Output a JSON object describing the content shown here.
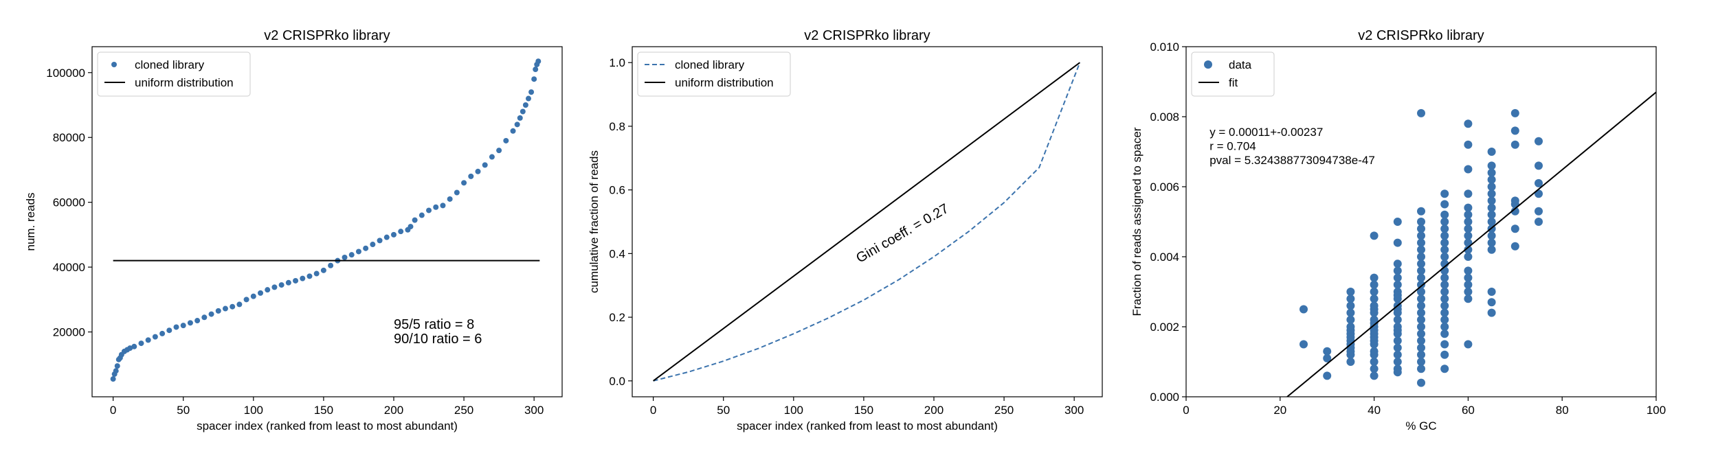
{
  "chart_data": [
    {
      "type": "scatter",
      "title": "v2 CRISPRko library",
      "xlabel": "spacer index (ranked from least to most abundant)",
      "ylabel": "num. reads",
      "xlim": [
        -15,
        320
      ],
      "ylim": [
        0,
        108000
      ],
      "xticks": [
        0,
        50,
        100,
        150,
        200,
        250,
        300
      ],
      "yticks": [
        20000,
        40000,
        60000,
        80000,
        100000
      ],
      "xtick_labels": [
        "0",
        "50",
        "100",
        "150",
        "200",
        "250",
        "300"
      ],
      "ytick_labels": [
        "20000",
        "40000",
        "60000",
        "80000",
        "100000"
      ],
      "grid": false,
      "legend_position": "top-left",
      "series": [
        {
          "name": "cloned library",
          "kind": "points",
          "color": "#3b73ad",
          "x": [
            0,
            1,
            2,
            3,
            4,
            5,
            6,
            8,
            10,
            12,
            15,
            20,
            25,
            30,
            35,
            40,
            45,
            50,
            55,
            60,
            65,
            70,
            75,
            80,
            85,
            90,
            95,
            100,
            105,
            110,
            115,
            120,
            125,
            130,
            135,
            140,
            145,
            150,
            155,
            160,
            165,
            170,
            175,
            180,
            185,
            190,
            195,
            200,
            205,
            210,
            212,
            215,
            220,
            225,
            230,
            235,
            240,
            245,
            250,
            255,
            260,
            265,
            270,
            275,
            280,
            285,
            288,
            290,
            292,
            294,
            296,
            298,
            300,
            301,
            302,
            303
          ],
          "y": [
            5500,
            7000,
            8000,
            9500,
            11500,
            12000,
            13000,
            14000,
            14500,
            15000,
            15500,
            16500,
            17500,
            18500,
            19500,
            20500,
            21500,
            22000,
            22800,
            23500,
            24500,
            25500,
            26500,
            27200,
            27800,
            28500,
            30000,
            31000,
            32000,
            33000,
            33800,
            34500,
            35200,
            35800,
            36500,
            37200,
            38000,
            39000,
            40500,
            42000,
            43000,
            43800,
            44800,
            45800,
            47000,
            48200,
            49200,
            50000,
            51000,
            51500,
            52500,
            54500,
            56000,
            57500,
            58500,
            59000,
            61000,
            63000,
            66000,
            68000,
            69500,
            71500,
            74000,
            76000,
            79000,
            82000,
            84000,
            86000,
            88000,
            90000,
            92000,
            94000,
            98000,
            101000,
            102500,
            103500
          ]
        },
        {
          "name": "uniform distribution",
          "kind": "line",
          "color": "#000000",
          "x": [
            0,
            304
          ],
          "y": [
            42000,
            42000
          ]
        }
      ],
      "annotations": [
        {
          "text": "95/5 ratio = 8",
          "x": 200,
          "y": 21000
        },
        {
          "text": "90/10 ratio = 6",
          "x": 200,
          "y": 16500
        }
      ]
    },
    {
      "type": "line",
      "title": "v2 CRISPRko library",
      "xlabel": "spacer index (ranked from least to most abundant)",
      "ylabel": "cumulative fraction of reads",
      "xlim": [
        -15,
        320
      ],
      "ylim": [
        -0.05,
        1.05
      ],
      "xticks": [
        0,
        50,
        100,
        150,
        200,
        250,
        300
      ],
      "yticks": [
        0.0,
        0.2,
        0.4,
        0.6,
        0.8,
        1.0
      ],
      "xtick_labels": [
        "0",
        "50",
        "100",
        "150",
        "200",
        "250",
        "300"
      ],
      "ytick_labels": [
        "0.0",
        "0.2",
        "0.4",
        "0.6",
        "0.8",
        "1.0"
      ],
      "grid": false,
      "legend_position": "top-left",
      "series": [
        {
          "name": "cloned library",
          "kind": "dashed",
          "color": "#3b73ad",
          "x": [
            0,
            25,
            50,
            75,
            100,
            125,
            150,
            175,
            200,
            225,
            250,
            275,
            304
          ],
          "y": [
            0.0,
            0.028,
            0.062,
            0.102,
            0.148,
            0.198,
            0.254,
            0.318,
            0.39,
            0.47,
            0.56,
            0.67,
            1.0
          ]
        },
        {
          "name": "uniform distribution",
          "kind": "line",
          "color": "#000000",
          "x": [
            0,
            304
          ],
          "y": [
            0.0,
            1.0
          ]
        }
      ],
      "annotations": [
        {
          "text": "Gini coeff. = 0.27",
          "x": 147,
          "y": 0.37,
          "rotation": -30
        }
      ]
    },
    {
      "type": "scatter",
      "title": "v2 CRISPRko library",
      "xlabel": "% GC",
      "ylabel": "Fraction of reads assigned to spacer",
      "xlim": [
        0,
        100
      ],
      "ylim": [
        0,
        0.01
      ],
      "xticks": [
        0,
        20,
        40,
        60,
        80,
        100
      ],
      "yticks": [
        0.0,
        0.002,
        0.004,
        0.006,
        0.008,
        0.01
      ],
      "xtick_labels": [
        "0",
        "20",
        "40",
        "60",
        "80",
        "100"
      ],
      "ytick_labels": [
        "0.000",
        "0.002",
        "0.004",
        "0.006",
        "0.008",
        "0.010"
      ],
      "grid": false,
      "legend_position": "top-left",
      "series": [
        {
          "name": "data",
          "kind": "points",
          "color": "#3b73ad",
          "x": [
            25,
            25,
            30,
            30,
            30,
            35,
            35,
            35,
            35,
            35,
            35,
            35,
            35,
            35,
            35,
            35,
            35,
            35,
            35,
            35,
            40,
            40,
            40,
            40,
            40,
            40,
            40,
            40,
            40,
            40,
            40,
            40,
            40,
            40,
            40,
            40,
            40,
            40,
            40,
            40,
            40,
            45,
            45,
            45,
            45,
            45,
            45,
            45,
            45,
            45,
            45,
            45,
            45,
            45,
            45,
            45,
            45,
            45,
            45,
            45,
            45,
            45,
            45,
            50,
            50,
            50,
            50,
            50,
            50,
            50,
            50,
            50,
            50,
            50,
            50,
            50,
            50,
            50,
            50,
            50,
            50,
            50,
            50,
            50,
            50,
            50,
            50,
            50,
            55,
            55,
            55,
            55,
            55,
            55,
            55,
            55,
            55,
            55,
            55,
            55,
            55,
            55,
            55,
            55,
            55,
            55,
            55,
            55,
            55,
            55,
            55,
            60,
            60,
            60,
            60,
            60,
            60,
            60,
            60,
            60,
            60,
            60,
            60,
            60,
            60,
            60,
            60,
            60,
            60,
            65,
            65,
            65,
            65,
            65,
            65,
            65,
            65,
            65,
            65,
            65,
            65,
            65,
            65,
            65,
            65,
            65,
            70,
            70,
            70,
            70,
            70,
            70,
            70,
            70,
            75,
            75,
            75,
            75,
            75,
            75
          ],
          "y": [
            0.0025,
            0.0015,
            0.0013,
            0.0011,
            0.0006,
            0.003,
            0.0028,
            0.0026,
            0.0024,
            0.0022,
            0.002,
            0.0019,
            0.0018,
            0.0017,
            0.0016,
            0.0015,
            0.0014,
            0.0013,
            0.0012,
            0.001,
            0.0046,
            0.0034,
            0.0032,
            0.003,
            0.0028,
            0.0026,
            0.0025,
            0.0024,
            0.0022,
            0.0021,
            0.002,
            0.0019,
            0.0018,
            0.0017,
            0.0016,
            0.0015,
            0.0013,
            0.0012,
            0.001,
            0.0008,
            0.0006,
            0.005,
            0.0044,
            0.0038,
            0.0036,
            0.0034,
            0.0032,
            0.003,
            0.0029,
            0.0028,
            0.0026,
            0.0025,
            0.0024,
            0.0022,
            0.002,
            0.0019,
            0.0018,
            0.0016,
            0.0014,
            0.0012,
            0.001,
            0.0008,
            0.0007,
            0.0081,
            0.0053,
            0.005,
            0.0048,
            0.0046,
            0.0044,
            0.0042,
            0.004,
            0.0038,
            0.0036,
            0.0034,
            0.0032,
            0.003,
            0.0028,
            0.0026,
            0.0024,
            0.0022,
            0.002,
            0.0018,
            0.0016,
            0.0014,
            0.0012,
            0.001,
            0.0008,
            0.0004,
            0.0058,
            0.0055,
            0.0052,
            0.005,
            0.0048,
            0.0046,
            0.0044,
            0.0042,
            0.004,
            0.0038,
            0.0036,
            0.0034,
            0.0032,
            0.003,
            0.0028,
            0.0026,
            0.0024,
            0.0022,
            0.002,
            0.0018,
            0.0015,
            0.0012,
            0.0008,
            0.0078,
            0.0072,
            0.0065,
            0.0058,
            0.0054,
            0.0052,
            0.005,
            0.0048,
            0.0046,
            0.0044,
            0.0042,
            0.004,
            0.0036,
            0.0034,
            0.0032,
            0.003,
            0.0028,
            0.0015,
            0.007,
            0.0066,
            0.0064,
            0.0062,
            0.006,
            0.0058,
            0.0056,
            0.0054,
            0.0052,
            0.005,
            0.0048,
            0.0046,
            0.0044,
            0.0042,
            0.003,
            0.0027,
            0.0024,
            0.0081,
            0.0076,
            0.0072,
            0.0056,
            0.0055,
            0.0053,
            0.0048,
            0.0043,
            0.0073,
            0.0066,
            0.0058,
            0.0053,
            0.005,
            0.0061
          ]
        },
        {
          "name": "fit",
          "kind": "line",
          "color": "#000000",
          "x": [
            21.5,
            100
          ],
          "y": [
            0.0,
            0.0087
          ]
        }
      ],
      "annotations": [
        {
          "text": "y = 0.00011+-0.00237",
          "x": 5,
          "y": 0.00745
        },
        {
          "text": "r = 0.704",
          "x": 5,
          "y": 0.00705
        },
        {
          "text": "pval = 5.324388773094738e-47",
          "x": 5,
          "y": 0.00665
        }
      ]
    }
  ]
}
